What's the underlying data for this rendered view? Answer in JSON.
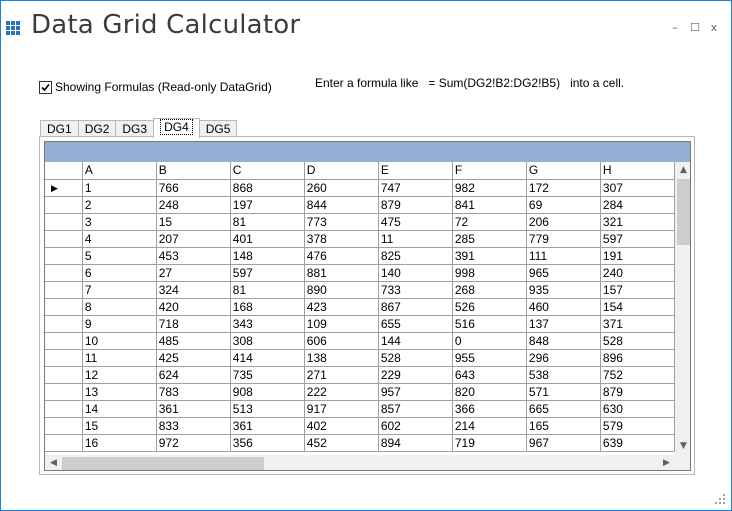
{
  "window": {
    "title": "Data Grid Calculator",
    "controls": {
      "minimize": "–",
      "maximize": "☐",
      "close": "x"
    }
  },
  "options": {
    "show_formulas_label": "Showing Formulas (Read-only DataGrid)",
    "show_formulas_checked": true
  },
  "hint": "Enter a formula like   = Sum(DG2!B2:DG2!B5)   into a cell.",
  "tabs": [
    {
      "label": "DG1",
      "active": false
    },
    {
      "label": "DG2",
      "active": false
    },
    {
      "label": "DG3",
      "active": false
    },
    {
      "label": "DG4",
      "active": true
    },
    {
      "label": "DG5",
      "active": false
    }
  ],
  "grid": {
    "columns": [
      "A",
      "B",
      "C",
      "D",
      "E",
      "F",
      "G",
      "H"
    ],
    "current_row_marker": "▶",
    "rows": [
      [
        "1",
        "766",
        "868",
        "260",
        "747",
        "982",
        "172",
        "307"
      ],
      [
        "2",
        "248",
        "197",
        "844",
        "879",
        "841",
        "69",
        "284"
      ],
      [
        "3",
        "15",
        "81",
        "773",
        "475",
        "72",
        "206",
        "321"
      ],
      [
        "4",
        "207",
        "401",
        "378",
        "11",
        "285",
        "779",
        "597"
      ],
      [
        "5",
        "453",
        "148",
        "476",
        "825",
        "391",
        "111",
        "191"
      ],
      [
        "6",
        "27",
        "597",
        "881",
        "140",
        "998",
        "965",
        "240"
      ],
      [
        "7",
        "324",
        "81",
        "890",
        "733",
        "268",
        "935",
        "157"
      ],
      [
        "8",
        "420",
        "168",
        "423",
        "867",
        "526",
        "460",
        "154"
      ],
      [
        "9",
        "718",
        "343",
        "109",
        "655",
        "516",
        "137",
        "371"
      ],
      [
        "10",
        "485",
        "308",
        "606",
        "144",
        "0",
        "848",
        "528"
      ],
      [
        "11",
        "425",
        "414",
        "138",
        "528",
        "955",
        "296",
        "896"
      ],
      [
        "12",
        "624",
        "735",
        "271",
        "229",
        "643",
        "538",
        "752"
      ],
      [
        "13",
        "783",
        "908",
        "222",
        "957",
        "820",
        "571",
        "879"
      ],
      [
        "14",
        "361",
        "513",
        "917",
        "857",
        "366",
        "665",
        "630"
      ],
      [
        "15",
        "833",
        "361",
        "402",
        "602",
        "214",
        "165",
        "579"
      ],
      [
        "16",
        "972",
        "356",
        "452",
        "894",
        "719",
        "967",
        "639"
      ]
    ]
  },
  "icons": {
    "app": "grid-icon",
    "scroll_up": "chevron-up-icon",
    "scroll_down": "chevron-down-icon",
    "scroll_left": "chevron-left-icon",
    "scroll_right": "chevron-right-icon",
    "resize": "resize-grip-icon"
  },
  "colors": {
    "accent": "#2a73c4",
    "caption_bar": "#94afd4",
    "window_border": "#1883d7"
  }
}
